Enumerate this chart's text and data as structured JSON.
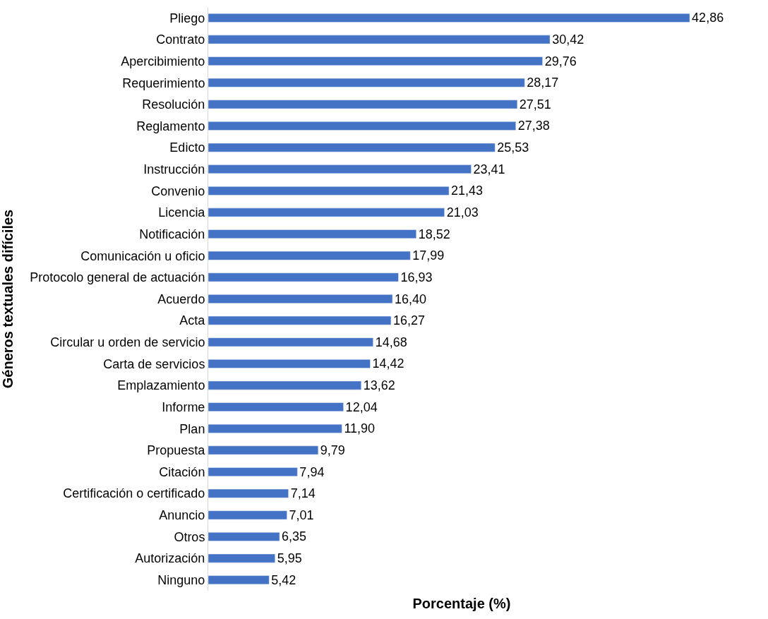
{
  "chart_data": {
    "type": "bar",
    "orientation": "horizontal",
    "xlabel": "Porcentaje (%)",
    "ylabel": "Géneros textuales difíciles",
    "color": "#4472c4",
    "legend": false,
    "categories": [
      "Pliego",
      "Contrato",
      "Apercibimiento",
      "Requerimiento",
      "Resolución",
      "Reglamento",
      "Edicto",
      "Instrucción",
      "Convenio",
      "Licencia",
      "Notificación",
      "Comunicación u oficio",
      "Protocolo general de actuación",
      "Acuerdo",
      "Acta",
      "Circular u orden de servicio",
      "Carta de servicios",
      "Emplazamiento",
      "Informe",
      "Plan",
      "Propuesta",
      "Citación",
      "Certificación o certificado",
      "Anuncio",
      "Otros",
      "Autorización",
      "Ninguno"
    ],
    "values": [
      42.86,
      30.42,
      29.76,
      28.17,
      27.51,
      27.38,
      25.53,
      23.41,
      21.43,
      21.03,
      18.52,
      17.99,
      16.93,
      16.4,
      16.27,
      14.68,
      14.42,
      13.62,
      12.04,
      11.9,
      9.79,
      7.94,
      7.14,
      7.01,
      6.35,
      5.95,
      5.42
    ],
    "value_labels": [
      "42,86",
      "30,42",
      "29,76",
      "28,17",
      "27,51",
      "27,38",
      "25,53",
      "23,41",
      "21,43",
      "21,03",
      "18,52",
      "17,99",
      "16,93",
      "16,40",
      "16,27",
      "14,68",
      "14,42",
      "13,62",
      "12,04",
      "11,90",
      "9,79",
      "7,94",
      "7,14",
      "7,01",
      "6,35",
      "5,95",
      "5,42"
    ]
  }
}
